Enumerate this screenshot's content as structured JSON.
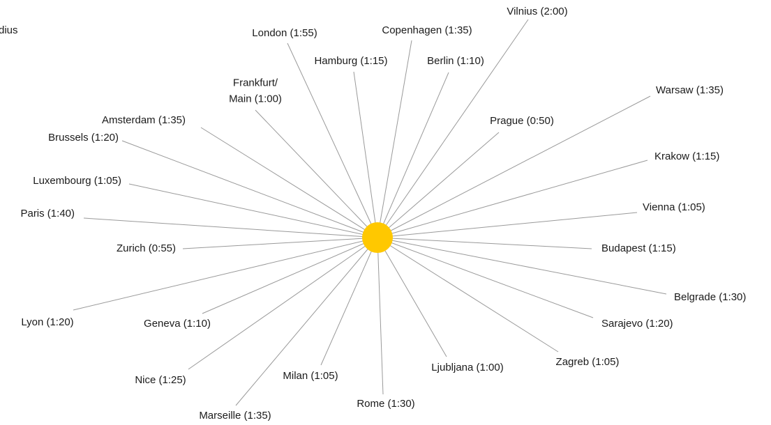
{
  "caption": "dius",
  "nodes": [
    {
      "label": "Vilnius (2:00)"
    },
    {
      "label": "Copenhagen (1:35)"
    },
    {
      "label": "London (1:55)"
    },
    {
      "label": "Hamburg (1:15)"
    },
    {
      "label": "Berlin (1:10)"
    },
    {
      "label": "Frankfurt/\nMain (1:00)"
    },
    {
      "label": "Warsaw (1:35)"
    },
    {
      "label": "Prague (0:50)"
    },
    {
      "label": "Amsterdam (1:35)"
    },
    {
      "label": "Brussels (1:20)"
    },
    {
      "label": "Krakow (1:15)"
    },
    {
      "label": "Luxembourg (1:05)"
    },
    {
      "label": "Vienna (1:05)"
    },
    {
      "label": "Paris (1:40)"
    },
    {
      "label": "Zurich (0:55)"
    },
    {
      "label": "Budapest (1:15)"
    },
    {
      "label": "Belgrade (1:30)"
    },
    {
      "label": "Lyon (1:20)"
    },
    {
      "label": "Geneva (1:10)"
    },
    {
      "label": "Sarajevo (1:20)"
    },
    {
      "label": "Nice (1:25)"
    },
    {
      "label": "Milan (1:05)"
    },
    {
      "label": "Ljubljana (1:00)"
    },
    {
      "label": "Zagreb (1:05)"
    },
    {
      "label": "Rome (1:30)"
    },
    {
      "label": "Marseille (1:35)"
    }
  ]
}
